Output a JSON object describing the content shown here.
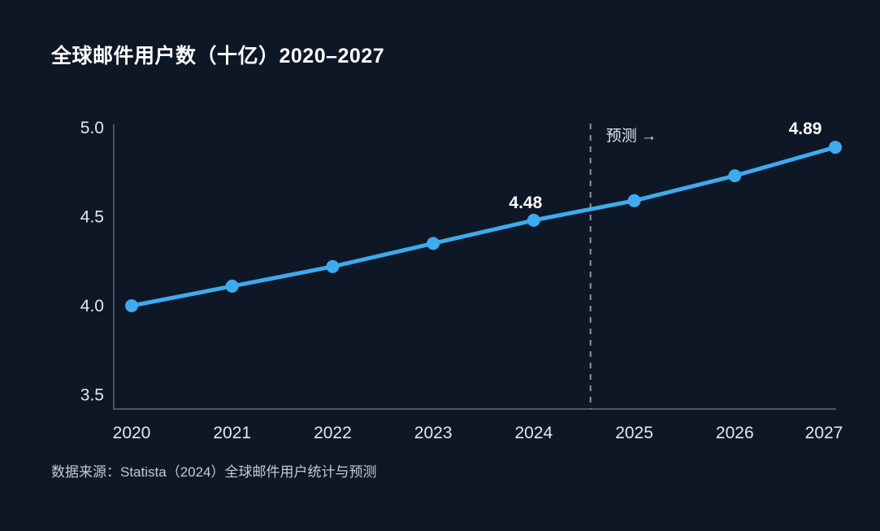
{
  "page": {
    "background_color": "#0e1726"
  },
  "header": {
    "title": "全球邮件用户数（十亿）2020–2027"
  },
  "footer": {
    "source_note": "数据来源：Statista（2024）全球邮件用户统计与预测"
  },
  "chart_data": {
    "type": "line",
    "title": "全球邮件用户数（十亿）2020–2027",
    "categories": [
      2020,
      2021,
      2022,
      2023,
      2024,
      2025,
      2026,
      2027
    ],
    "series": [
      {
        "name": "全球邮件用户数（十亿）",
        "values": [
          4.0,
          4.11,
          4.22,
          4.35,
          4.48,
          4.59,
          4.73,
          4.89
        ]
      }
    ],
    "xlabel": "",
    "ylabel": "",
    "ylim": [
      3.5,
      5.0
    ],
    "yticks": [
      "5.0",
      "4.5",
      "4.0",
      "3.5"
    ],
    "ytick_values": [
      5.0,
      4.5,
      4.0,
      3.5
    ],
    "grid": false,
    "legend": false,
    "point_labels": [
      {
        "year": 2024,
        "label": "4.48"
      },
      {
        "year": 2027,
        "label": "4.89"
      }
    ],
    "forecast": {
      "boundary_after_year": 2024,
      "label": "预测 →"
    },
    "colors": {
      "line": "#3dabed",
      "marker": "#3dabed",
      "axis": "#4b5565",
      "forecast_divider": "#8a93a6",
      "tick_text": "#e2e8f2",
      "point_label_text": "#ffffff",
      "forecast_text": "#e2e8f2",
      "background": "#0e1726"
    }
  }
}
